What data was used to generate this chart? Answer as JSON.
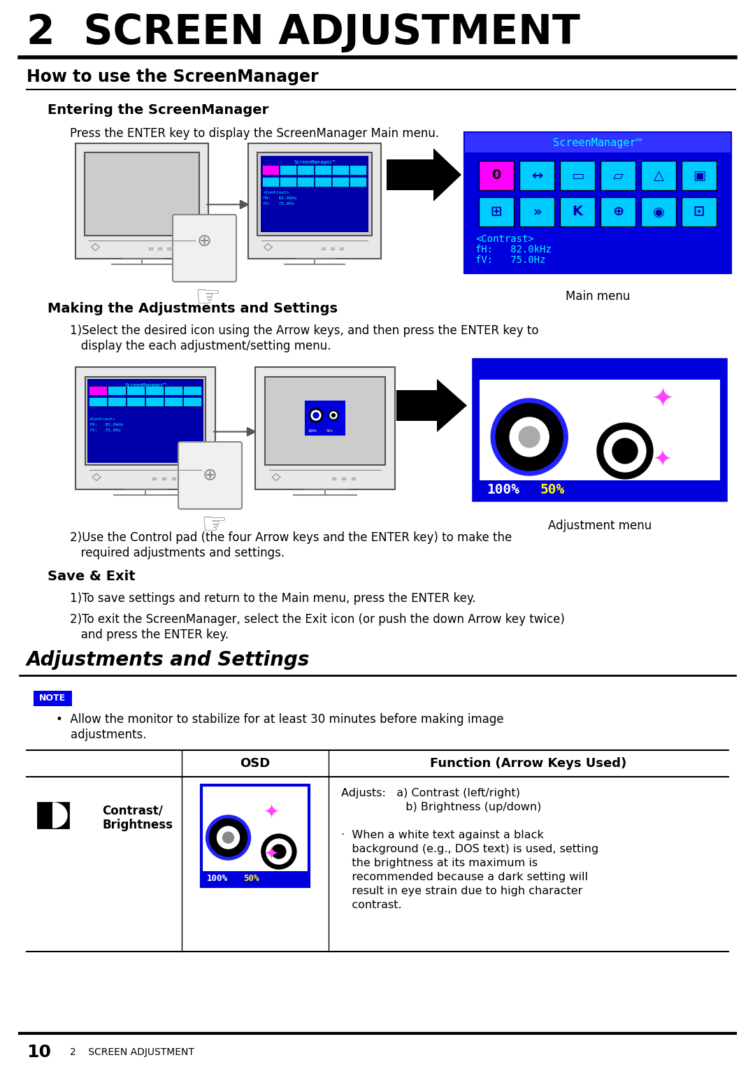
{
  "title": "2  SCREEN ADJUSTMENT",
  "section1_title": "How to use the ScreenManager",
  "sub1_title": "Entering the ScreenManager",
  "sub1_body": "Press the ENTER key to display the ScreenManager Main menu.",
  "main_menu_label": "Main menu",
  "sub2_title": "Making the Adjustments and Settings",
  "sub2_item1a": "1)Select the desired icon using the Arrow keys, and then press the ENTER key to",
  "sub2_item1b": "   display the each adjustment/setting menu.",
  "adj_menu_label": "Adjustment menu",
  "sub2_item2a": "2)Use the Control pad (the four Arrow keys and the ENTER key) to make the",
  "sub2_item2b": "   required adjustments and settings.",
  "sub3_title": "Save & Exit",
  "sub3_item1": "1)To save settings and return to the Main menu, press the ENTER key.",
  "sub3_item2a": "2)To exit the ScreenManager, select the Exit icon (or push the down Arrow key twice)",
  "sub3_item2b": "   and press the ENTER key.",
  "section2_title": "Adjustments and Settings",
  "note_label": "NOTE",
  "note_text1": "•  Allow the monitor to stabilize for at least 30 minutes before making image",
  "note_text2": "    adjustments.",
  "table_col1": "OSD",
  "table_col2": "Function (Arrow Keys Used)",
  "row1_label1": "Contrast/",
  "row1_label2": "Brightness",
  "func_line1": "Adjusts:   a) Contrast (left/right)",
  "func_line2": "                  b) Brightness (up/down)",
  "func_line3": "·  When a white text against a black",
  "func_line4": "   background (e.g., DOS text) is used, setting",
  "func_line5": "   the brightness at its maximum is",
  "func_line6": "   recommended because a dark setting will",
  "func_line7": "   result in eye strain due to high character",
  "func_line8": "   contrast.",
  "footer_page": "10",
  "footer_text": "2    SCREEN ADJUSTMENT",
  "bg_color": "#ffffff",
  "blue_dark": "#0000cc",
  "blue_med": "#1a1acc",
  "cyan_color": "#00ccff",
  "magenta_color": "#ff00ff",
  "note_bg": "#0000ee"
}
